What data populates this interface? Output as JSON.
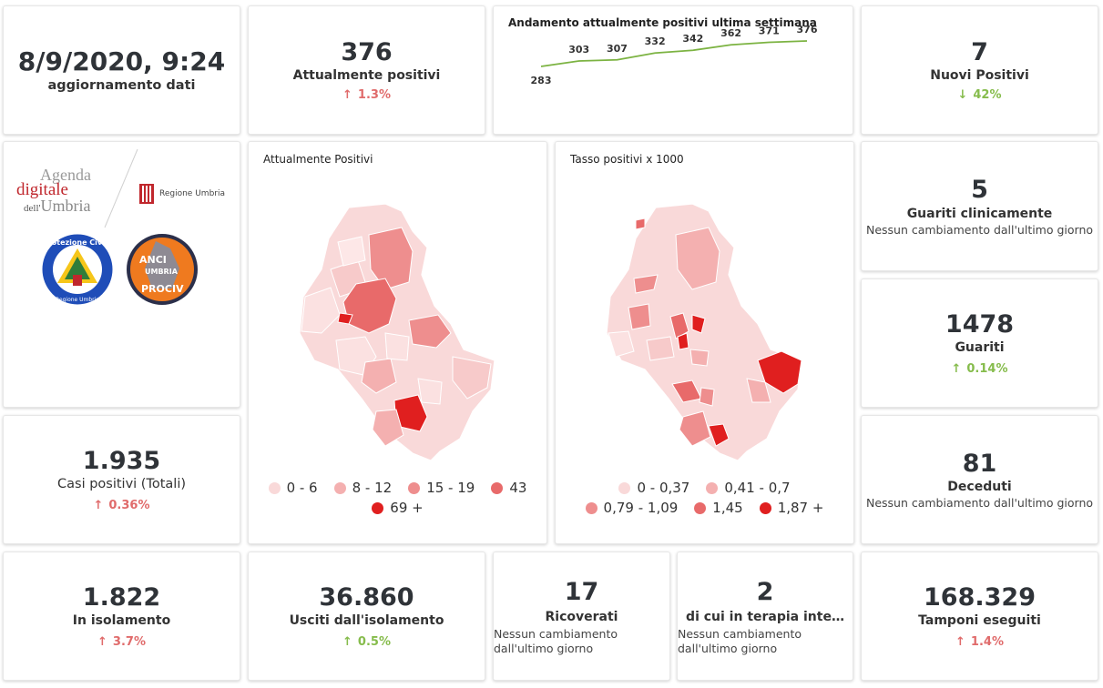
{
  "update": {
    "datetime": "8/9/2020, 9:24",
    "label": "aggiornamento dati"
  },
  "attualmente_positivi": {
    "value": "376",
    "label": "Attualmente positivi",
    "trend": "1.3%",
    "direction": "up"
  },
  "andamento": {
    "title": "Andamento attualmente positivi ultima settimana",
    "chart_data": {
      "type": "line",
      "values": [
        283,
        303,
        307,
        332,
        342,
        362,
        371,
        376
      ]
    }
  },
  "nuovi_positivi": {
    "value": "7",
    "label": "Nuovi Positivi",
    "trend": "42%",
    "direction": "down"
  },
  "logos": {
    "agenda_line1": "Agenda",
    "agenda_line2": "digitale",
    "agenda_line3a": "dell'",
    "agenda_line3b": "Umbria",
    "regione": "Regione Umbria",
    "protezione_civile": "Protezione Civile",
    "protezione_sub": "Regione Umbria",
    "anci_1": "ANCI",
    "anci_2": "UMBRIA",
    "anci_3": "PROCIV"
  },
  "map_positivi": {
    "title": "Attualmente Positivi",
    "legend": [
      {
        "label": "0 - 6",
        "color": "#f9d9d9"
      },
      {
        "label": "8 - 12",
        "color": "#f4b0b0"
      },
      {
        "label": "15 - 19",
        "color": "#ee8e8e"
      },
      {
        "label": "43",
        "color": "#e86a6a"
      },
      {
        "label": "69 +",
        "color": "#e01f1f"
      }
    ]
  },
  "map_tasso": {
    "title": "Tasso positivi x 1000",
    "legend": [
      {
        "label": "0 - 0,37",
        "color": "#f9d9d9"
      },
      {
        "label": "0,41 - 0,7",
        "color": "#f4b0b0"
      },
      {
        "label": "0,79 - 1,09",
        "color": "#ee8e8e"
      },
      {
        "label": "1,45",
        "color": "#e86a6a"
      },
      {
        "label": "1,87 +",
        "color": "#e01f1f"
      }
    ]
  },
  "guariti_clinicamente": {
    "value": "5",
    "label": "Guariti clinicamente",
    "sub": "Nessun cambiamento dall'ultimo giorno"
  },
  "guariti": {
    "value": "1478",
    "label": "Guariti",
    "trend": "0.14%",
    "direction": "up"
  },
  "deceduti": {
    "value": "81",
    "label": "Deceduti",
    "sub": "Nessun cambiamento dall'ultimo giorno"
  },
  "casi_totali": {
    "value": "1.935",
    "label": "Casi positivi (Totali)",
    "trend": "0.36%",
    "direction": "up"
  },
  "isolamento": {
    "value": "1.822",
    "label": "In isolamento",
    "trend": "3.7%",
    "direction": "up"
  },
  "usciti": {
    "value": "36.860",
    "label": "Usciti dall'isolamento",
    "trend": "0.5%",
    "direction": "up"
  },
  "ricoverati": {
    "value": "17",
    "label": "Ricoverati",
    "sub1": "Nessun cambiamento",
    "sub2": "dall'ultimo giorno"
  },
  "terapia": {
    "value": "2",
    "label": "di cui in terapia inte…",
    "sub1": "Nessun cambiamento",
    "sub2": "dall'ultimo giorno"
  },
  "tamponi": {
    "value": "168.329",
    "label": "Tamponi eseguiti",
    "trend": "1.4%",
    "direction": "up"
  },
  "icons": {
    "up": "arrow-up-icon",
    "down": "arrow-down-icon"
  }
}
